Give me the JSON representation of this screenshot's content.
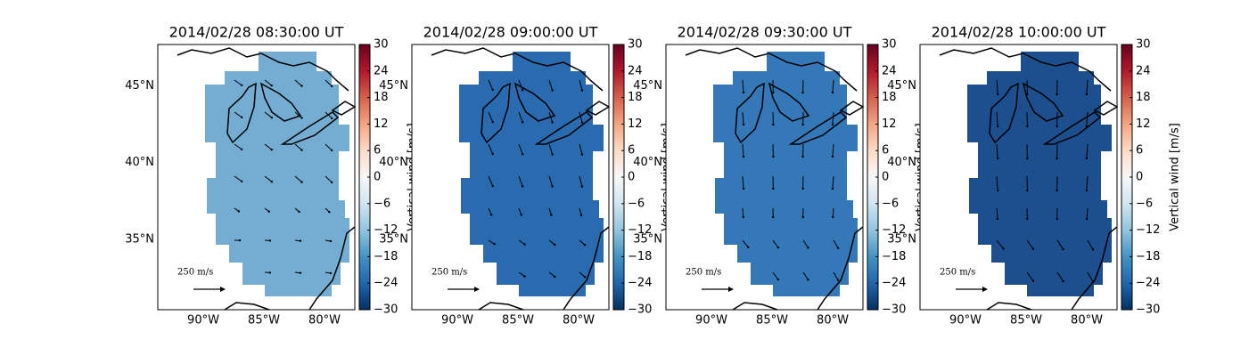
{
  "panels": [
    {
      "title": "2014/02/28 08:30:00 UT",
      "color": "#74add1"
    },
    {
      "title": "2014/02/28 09:00:00 UT",
      "color": "#2a6aae"
    },
    {
      "title": "2014/02/28 09:30:00 UT",
      "color": "#3478b8"
    },
    {
      "title": "2014/02/28 10:00:00 UT",
      "color": "#1d4f8e"
    }
  ],
  "map": {
    "lonlim": [
      -93.75,
      -77.5
    ],
    "latlim": [
      30.4,
      47.7
    ],
    "lon_ticks": [
      {
        "value": -90,
        "label": "90°W"
      },
      {
        "value": -85,
        "label": "85°W"
      },
      {
        "value": -80,
        "label": "80°W"
      }
    ],
    "lat_ticks": [
      {
        "value": 45,
        "label": "45°N"
      },
      {
        "value": 40,
        "label": "40°N"
      },
      {
        "value": 35,
        "label": "35°N"
      }
    ],
    "scale_label": "250 m/s"
  },
  "colorbar": {
    "label": "Vertical wind [m/s]",
    "lim": [
      -30,
      30
    ],
    "colors": [
      "#053061",
      "#2166ac",
      "#4393c3",
      "#92c5de",
      "#d1e5f0",
      "#f7f7f7",
      "#fddbc7",
      "#f4a582",
      "#d6604d",
      "#b2182b",
      "#67001f"
    ],
    "ticks": [
      {
        "value": -30,
        "label": "−30"
      },
      {
        "value": -24,
        "label": "−24"
      },
      {
        "value": -18,
        "label": "−18"
      },
      {
        "value": -12,
        "label": "−12"
      },
      {
        "value": -6,
        "label": "−6"
      },
      0,
      6,
      12,
      18,
      24,
      30
    ]
  }
}
